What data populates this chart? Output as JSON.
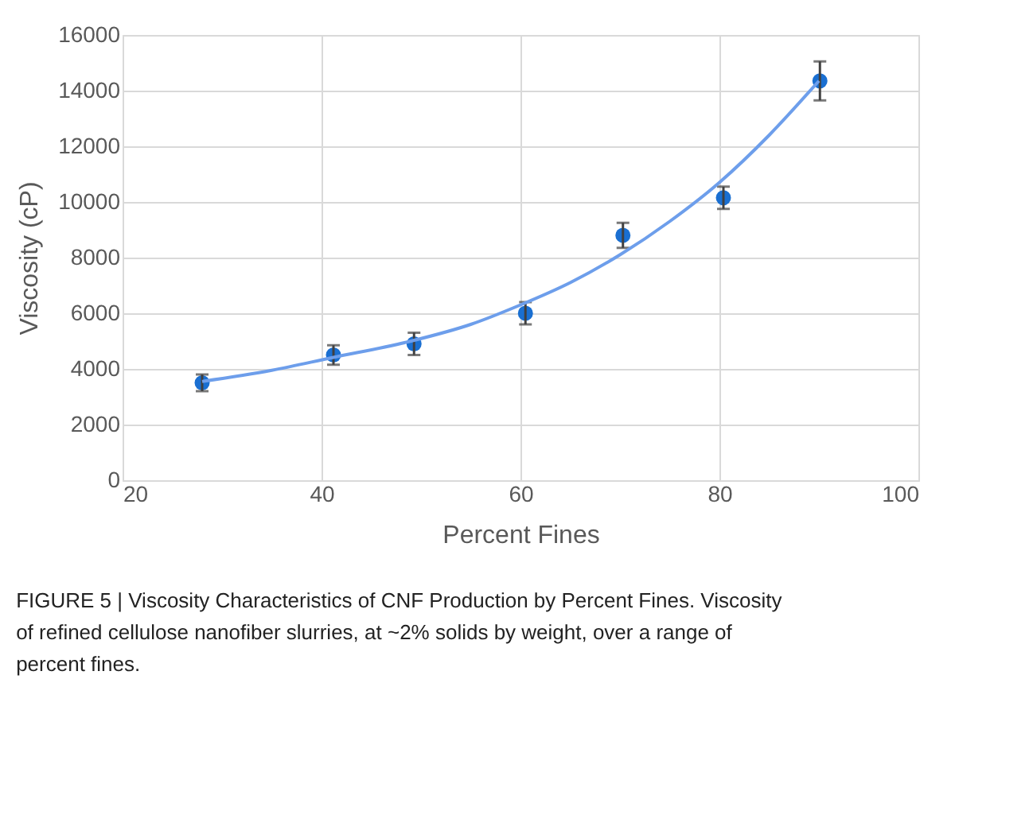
{
  "chart_data": {
    "type": "scatter",
    "xlabel": "Percent Fines",
    "ylabel": "Viscosity (cP)",
    "xlim": [
      20,
      100
    ],
    "xticks": [
      20,
      40,
      60,
      80,
      100
    ],
    "ylim": [
      0,
      16000
    ],
    "yticks": [
      0,
      2000,
      4000,
      6000,
      8000,
      10000,
      12000,
      14000,
      16000
    ],
    "grid": true,
    "marker": "circle",
    "series": [
      {
        "type": "scatter",
        "color": "#1a6fd1",
        "x": [
          28,
          41.2,
          49.3,
          60.5,
          70.3,
          80.4,
          90.1
        ],
        "values": [
          3500,
          4500,
          4900,
          6000,
          8800,
          10150,
          14350
        ],
        "errors": [
          300,
          350,
          400,
          400,
          450,
          400,
          700
        ]
      },
      {
        "type": "line",
        "color": "#6d9eeb",
        "marker": "none",
        "line_style": "solid",
        "x": [
          28,
          35,
          41,
          49,
          55,
          60,
          65,
          70,
          75,
          80,
          85,
          90
        ],
        "values": [
          3550,
          3950,
          4400,
          5000,
          5600,
          6300,
          7100,
          8100,
          9300,
          10700,
          12400,
          14350
        ]
      }
    ],
    "annotations": [
      "FIGURE 5 | Viscosity Characteristics of CNF Production by Percent Fines. Viscosity of refined cellulose nanofiber slurries, at ~2% solids by weight, over a range of percent fines."
    ]
  }
}
